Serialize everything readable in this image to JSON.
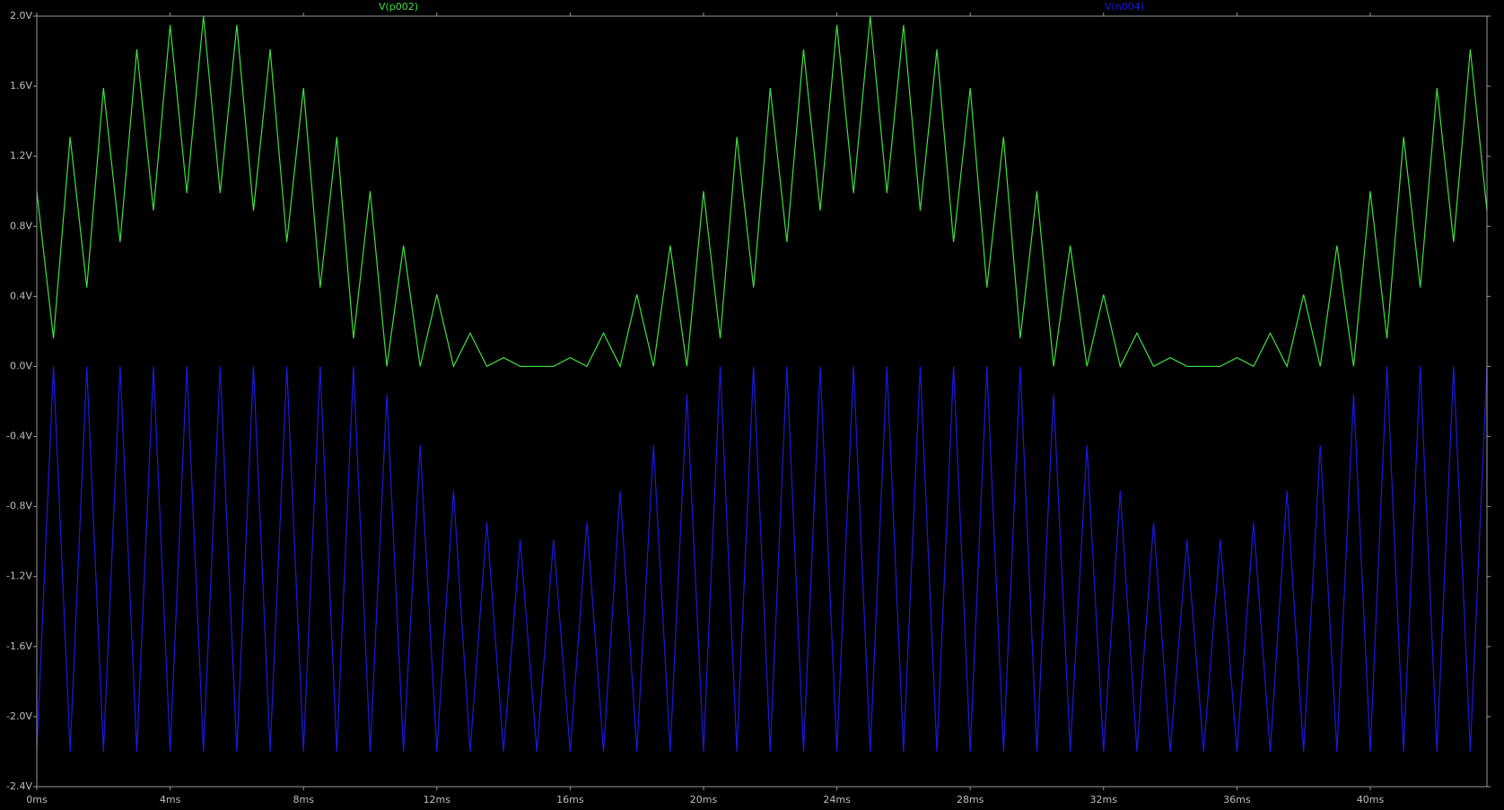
{
  "chart_data": {
    "type": "line",
    "x": [
      0,
      0.5,
      1,
      1.5,
      2,
      2.5,
      3,
      3.5,
      4,
      4.5,
      5,
      5.5,
      6,
      6.5,
      7,
      7.5,
      8,
      8.5,
      9,
      9.5,
      10,
      10.5,
      11,
      11.5,
      12,
      12.5,
      13,
      13.5,
      14,
      14.5,
      15,
      15.5,
      16,
      16.5,
      17,
      17.5,
      18,
      18.5,
      19,
      19.5,
      20,
      20.5,
      21,
      21.5,
      22,
      22.5,
      23,
      23.5,
      24,
      24.5,
      25,
      25.5,
      26,
      26.5,
      27,
      27.5,
      28,
      28.5,
      29,
      29.5,
      30,
      30.5,
      31,
      31.5,
      32,
      32.5,
      33,
      33.5,
      34,
      34.5,
      35,
      35.5,
      36,
      36.5,
      37,
      37.5,
      38,
      38.5,
      39,
      39.5,
      40,
      40.5,
      41,
      41.5,
      42,
      42.5,
      43,
      43.5
    ],
    "series": [
      {
        "name": "V(p002)",
        "color": "#3ee03e",
        "values": [
          1,
          0.16,
          1.31,
          0.45,
          1.59,
          0.71,
          1.81,
          0.89,
          1.95,
          0.99,
          2,
          0.99,
          1.95,
          0.89,
          1.81,
          0.71,
          1.59,
          0.45,
          1.31,
          0.16,
          1,
          0,
          0.69,
          0,
          0.41,
          0,
          0.19,
          0,
          0.05,
          0,
          0,
          0,
          0.05,
          0,
          0.19,
          0,
          0.41,
          0,
          0.69,
          0,
          1,
          0.16,
          1.31,
          0.45,
          1.59,
          0.71,
          1.81,
          0.89,
          1.95,
          0.99,
          2,
          0.99,
          1.95,
          0.89,
          1.81,
          0.71,
          1.59,
          0.45,
          1.31,
          0.16,
          1,
          0,
          0.69,
          0,
          0.41,
          0,
          0.19,
          0,
          0.05,
          0,
          0,
          0,
          0.05,
          0,
          0.19,
          0,
          0.41,
          0,
          0.69,
          0,
          1,
          0.16,
          1.31,
          0.45,
          1.59,
          0.71,
          1.81,
          0.89
        ]
      },
      {
        "name": "V(n004)",
        "color": "#1a1ae0",
        "values": [
          -2.2,
          0,
          -2.2,
          0,
          -2.2,
          0,
          -2.2,
          0,
          -2.2,
          0,
          -2.2,
          0,
          -2.2,
          0,
          -2.2,
          0,
          -2.2,
          0,
          -2.2,
          0,
          -2.2,
          -0.16,
          -2.2,
          -0.45,
          -2.2,
          -0.71,
          -2.2,
          -0.89,
          -2.2,
          -0.99,
          -2.2,
          -0.99,
          -2.2,
          -0.89,
          -2.2,
          -0.71,
          -2.2,
          -0.45,
          -2.2,
          -0.16,
          -2.2,
          0,
          -2.2,
          0,
          -2.2,
          0,
          -2.2,
          0,
          -2.2,
          0,
          -2.2,
          0,
          -2.2,
          0,
          -2.2,
          0,
          -2.2,
          0,
          -2.2,
          0,
          -2.2,
          -0.16,
          -2.2,
          -0.45,
          -2.2,
          -0.71,
          -2.2,
          -0.89,
          -2.2,
          -0.99,
          -2.2,
          -0.99,
          -2.2,
          -0.89,
          -2.2,
          -0.71,
          -2.2,
          -0.45,
          -2.2,
          -0.16,
          -2.2,
          0,
          -2.2,
          0,
          -2.2,
          0,
          -2.2,
          0
        ]
      }
    ],
    "xlim": [
      0,
      43.5
    ],
    "xticks": [
      {
        "value": 0,
        "label": "0ms"
      },
      {
        "value": 4,
        "label": "4ms"
      },
      {
        "value": 8,
        "label": "8ms"
      },
      {
        "value": 12,
        "label": "12ms"
      },
      {
        "value": 16,
        "label": "16ms"
      },
      {
        "value": 20,
        "label": "20ms"
      },
      {
        "value": 24,
        "label": "24ms"
      },
      {
        "value": 28,
        "label": "28ms"
      },
      {
        "value": 32,
        "label": "32ms"
      },
      {
        "value": 36,
        "label": "36ms"
      },
      {
        "value": 40,
        "label": "40ms"
      }
    ],
    "ylim": [
      -2.4,
      2.0
    ],
    "yticks": [
      {
        "value": 2.0,
        "label": "2.0V"
      },
      {
        "value": 1.6,
        "label": "1.6V"
      },
      {
        "value": 1.2,
        "label": "1.2V"
      },
      {
        "value": 0.8,
        "label": "0.8V"
      },
      {
        "value": 0.4,
        "label": "0.4V"
      },
      {
        "value": 0,
        "label": "0.0V"
      },
      {
        "value": -0.4,
        "label": "-0.4V"
      },
      {
        "value": -0.8,
        "label": "-0.8V"
      },
      {
        "value": -1.2,
        "label": "-1.2V"
      },
      {
        "value": -1.6,
        "label": "-1.6V"
      },
      {
        "value": -2.0,
        "label": "-2.0V"
      },
      {
        "value": -2.4,
        "label": "-2.4V"
      }
    ]
  }
}
